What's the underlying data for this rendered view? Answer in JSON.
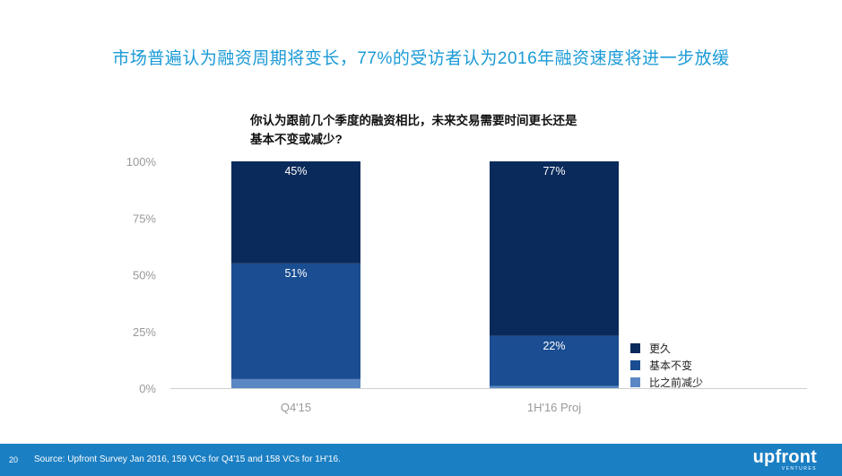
{
  "title": "市场普遍认为融资周期将变长，77%的受访者认为2016年融资速度将进一步放缓",
  "question": {
    "line1": "你认为跟前几个季度的融资相比，未来交易需要时间更长还是",
    "line2": "基本不变或减少?"
  },
  "chart_data": {
    "type": "bar",
    "stacked": true,
    "categories": [
      "Q4'15",
      "1H'16 Proj"
    ],
    "series": [
      {
        "name": "比之前减少",
        "values": [
          4,
          1
        ],
        "labels": [
          "4%",
          "1%"
        ],
        "color": "#5b88c4"
      },
      {
        "name": "基本不变",
        "values": [
          51,
          22
        ],
        "labels": [
          "51%",
          "22%"
        ],
        "color": "#1a4d91"
      },
      {
        "name": "更久",
        "values": [
          45,
          77
        ],
        "labels": [
          "45%",
          "77%"
        ],
        "color": "#0b2a5c"
      }
    ],
    "y_ticks": [
      "0%",
      "25%",
      "50%",
      "75%",
      "100%"
    ],
    "ylim": [
      0,
      100
    ],
    "legend_order": [
      "更久",
      "基本不变",
      "比之前减少"
    ],
    "legend_position": "right"
  },
  "footer": {
    "page": "20",
    "source": "Source: Upfront Survey Jan 2016, 159 VCs for Q4'15 and 158 VCs for 1H'16.",
    "logo": "upfront",
    "logo_sub": "VENTURES"
  },
  "colors": {
    "title": "#1a9ad6",
    "footer_bg": "#1b7fc3",
    "axis_text": "#999999",
    "baseline": "#cfcfcf"
  }
}
